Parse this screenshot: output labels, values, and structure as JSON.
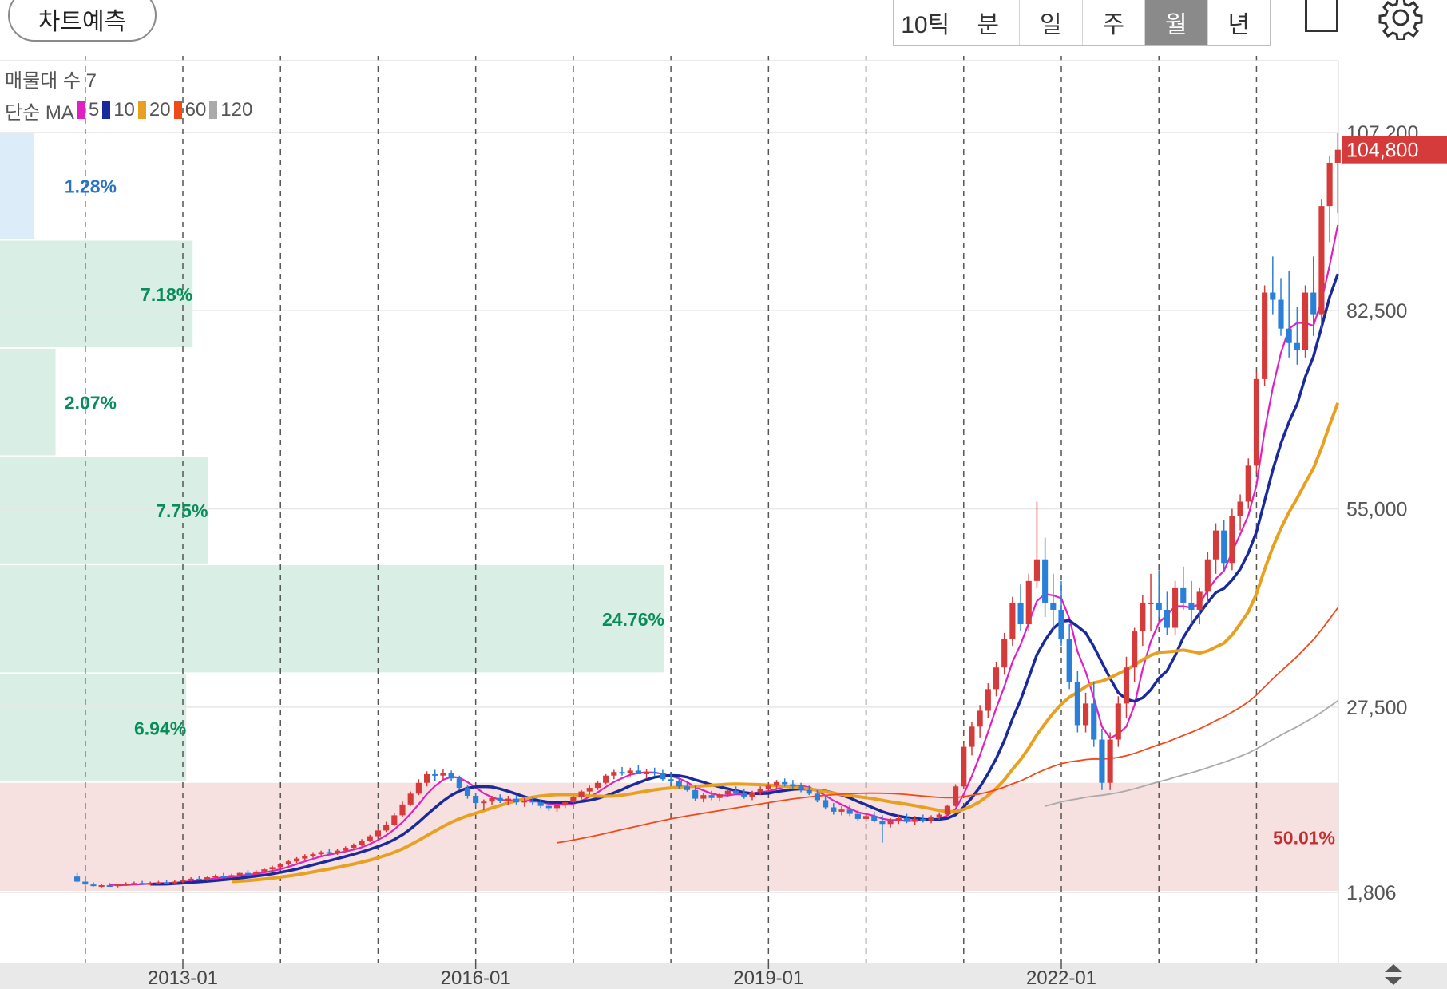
{
  "toolbar": {
    "predict_label": "차트예측",
    "periods": [
      "10틱",
      "분",
      "일",
      "주",
      "월",
      "년"
    ],
    "active_period": "월"
  },
  "legend": {
    "volume_profile_label": "매물대 수 7",
    "ma_label": "단순 MA",
    "ma_items": [
      {
        "label": "5",
        "color": "#e020c0"
      },
      {
        "label": "10",
        "color": "#1a2a9a"
      },
      {
        "label": "20",
        "color": "#e8a020"
      },
      {
        "label": "60",
        "color": "#f04a1a"
      },
      {
        "label": "120",
        "color": "#aaaaaa"
      }
    ]
  },
  "chart_data": {
    "type": "candlestick",
    "interval": "monthly",
    "x_tick_labels": [
      "2013-01",
      "2016-01",
      "2019-01",
      "2022-01"
    ],
    "y_tick_labels": [
      "107,200",
      "82,500",
      "55,000",
      "27,500",
      "1,806"
    ],
    "y_ticks": [
      107200,
      82500,
      55000,
      27500,
      1806
    ],
    "ylim": [
      1806,
      107200
    ],
    "last_price_label": "104,800",
    "last_price": 104800,
    "colors": {
      "up": "#d63b3b",
      "down": "#2a7fd8",
      "band_low": "#f2cccc",
      "band_high": "#bfe5d3",
      "band_top": "#c4dff4"
    },
    "volume_profile": [
      {
        "label": "1.28%",
        "percent": 1.28,
        "from": 92200,
        "to": 107200,
        "color": "#2a72c4"
      },
      {
        "label": "7.18%",
        "percent": 7.18,
        "from": 77200,
        "to": 92200,
        "color": "#0a8c5a"
      },
      {
        "label": "2.07%",
        "percent": 2.07,
        "from": 62200,
        "to": 77200,
        "color": "#0a8c5a"
      },
      {
        "label": "7.75%",
        "percent": 7.75,
        "from": 47200,
        "to": 62200,
        "color": "#0a8c5a"
      },
      {
        "label": "24.76%",
        "percent": 24.76,
        "from": 32100,
        "to": 47200,
        "color": "#0a8c5a"
      },
      {
        "label": "6.94%",
        "percent": 6.94,
        "from": 17000,
        "to": 32100,
        "color": "#0a8c5a"
      },
      {
        "label": "50.01%",
        "percent": 50.01,
        "from": 1806,
        "to": 17000,
        "color": "#c03030"
      }
    ],
    "ohlc": [
      [
        "2011-12",
        4000,
        4500,
        3200,
        3300
      ],
      [
        "2012-01",
        3300,
        3500,
        2700,
        2900
      ],
      [
        "2012-02",
        2900,
        3200,
        2600,
        2700
      ],
      [
        "2012-03",
        2700,
        3000,
        2500,
        2800
      ],
      [
        "2012-04",
        2800,
        3100,
        2600,
        2700
      ],
      [
        "2012-05",
        2700,
        3000,
        2500,
        2900
      ],
      [
        "2012-06",
        2900,
        3200,
        2700,
        3000
      ],
      [
        "2012-07",
        3000,
        3300,
        2800,
        3100
      ],
      [
        "2012-08",
        3100,
        3400,
        2900,
        3000
      ],
      [
        "2012-09",
        3000,
        3300,
        2800,
        3100
      ],
      [
        "2012-10",
        3100,
        3400,
        2900,
        3200
      ],
      [
        "2012-11",
        3200,
        3500,
        3000,
        3100
      ],
      [
        "2012-12",
        3100,
        3500,
        2900,
        3300
      ],
      [
        "2013-01",
        3300,
        3700,
        3100,
        3500
      ],
      [
        "2013-02",
        3500,
        3900,
        3300,
        3700
      ],
      [
        "2013-03",
        3700,
        4100,
        3500,
        3600
      ],
      [
        "2013-04",
        3600,
        4000,
        3400,
        3900
      ],
      [
        "2013-05",
        3900,
        4300,
        3700,
        4100
      ],
      [
        "2013-06",
        4100,
        4500,
        3900,
        4000
      ],
      [
        "2013-07",
        4000,
        4400,
        3800,
        4200
      ],
      [
        "2013-08",
        4200,
        4700,
        4000,
        4500
      ],
      [
        "2013-09",
        4500,
        4900,
        4300,
        4400
      ],
      [
        "2013-10",
        4400,
        4900,
        4200,
        4700
      ],
      [
        "2013-11",
        4700,
        5200,
        4500,
        5000
      ],
      [
        "2013-12",
        5000,
        5500,
        4800,
        5300
      ],
      [
        "2014-01",
        5300,
        5900,
        5100,
        5700
      ],
      [
        "2014-02",
        5700,
        6300,
        5500,
        6100
      ],
      [
        "2014-03",
        6100,
        6700,
        5900,
        6500
      ],
      [
        "2014-04",
        6500,
        7100,
        6300,
        6900
      ],
      [
        "2014-05",
        6900,
        7400,
        6600,
        7100
      ],
      [
        "2014-06",
        7100,
        7600,
        6800,
        7400
      ],
      [
        "2014-07",
        7400,
        7900,
        7100,
        7300
      ],
      [
        "2014-08",
        7300,
        7800,
        7000,
        7600
      ],
      [
        "2014-09",
        7600,
        8200,
        7400,
        8000
      ],
      [
        "2014-10",
        8000,
        8600,
        7800,
        8400
      ],
      [
        "2014-11",
        8400,
        9200,
        8200,
        9000
      ],
      [
        "2014-12",
        9000,
        9800,
        8800,
        9600
      ],
      [
        "2015-01",
        9600,
        10600,
        9400,
        10400
      ],
      [
        "2015-02",
        10400,
        11600,
        10200,
        11200
      ],
      [
        "2015-03",
        11200,
        12800,
        11000,
        12500
      ],
      [
        "2015-04",
        12500,
        14400,
        12300,
        14000
      ],
      [
        "2015-05",
        14000,
        15800,
        13800,
        15500
      ],
      [
        "2015-06",
        15500,
        17500,
        15300,
        17000
      ],
      [
        "2015-07",
        17000,
        18600,
        16500,
        18200
      ],
      [
        "2015-08",
        18200,
        18800,
        17300,
        18000
      ],
      [
        "2015-09",
        18000,
        18900,
        17400,
        18400
      ],
      [
        "2015-10",
        18400,
        18700,
        17300,
        17600
      ],
      [
        "2015-11",
        17600,
        18000,
        16000,
        16300
      ],
      [
        "2015-12",
        16300,
        16700,
        14800,
        15200
      ],
      [
        "2016-01",
        15200,
        15600,
        13800,
        14200
      ],
      [
        "2016-02",
        14200,
        14700,
        13200,
        14400
      ],
      [
        "2016-03",
        14400,
        15200,
        13900,
        14900
      ],
      [
        "2016-04",
        14900,
        15400,
        14200,
        14500
      ],
      [
        "2016-05",
        14500,
        15200,
        13900,
        14800
      ],
      [
        "2016-06",
        14800,
        15300,
        14000,
        14300
      ],
      [
        "2016-07",
        14300,
        14900,
        13700,
        14500
      ],
      [
        "2016-08",
        14500,
        15100,
        13900,
        14300
      ],
      [
        "2016-09",
        14300,
        14700,
        13500,
        13800
      ],
      [
        "2016-10",
        13800,
        14300,
        13100,
        13500
      ],
      [
        "2016-11",
        13500,
        14200,
        13000,
        13900
      ],
      [
        "2016-12",
        13900,
        14600,
        13500,
        14300
      ],
      [
        "2017-01",
        14300,
        15200,
        14000,
        15000
      ],
      [
        "2017-02",
        15000,
        16000,
        14700,
        15800
      ],
      [
        "2017-03",
        15800,
        16600,
        15400,
        16300
      ],
      [
        "2017-04",
        16300,
        17300,
        16000,
        17000
      ],
      [
        "2017-05",
        17000,
        18200,
        16800,
        18000
      ],
      [
        "2017-06",
        18000,
        18800,
        17500,
        18500
      ],
      [
        "2017-07",
        18500,
        19200,
        18000,
        18400
      ],
      [
        "2017-08",
        18400,
        19100,
        17900,
        18700
      ],
      [
        "2017-09",
        18700,
        19500,
        18200,
        18200
      ],
      [
        "2017-10",
        18200,
        18900,
        17600,
        18500
      ],
      [
        "2017-11",
        18500,
        19100,
        17900,
        18300
      ],
      [
        "2017-12",
        18300,
        18800,
        17200,
        17500
      ],
      [
        "2018-01",
        17500,
        18200,
        16800,
        17200
      ],
      [
        "2018-02",
        17200,
        17700,
        16200,
        16500
      ],
      [
        "2018-03",
        16500,
        17200,
        15800,
        16000
      ],
      [
        "2018-04",
        16000,
        16600,
        14500,
        14800
      ],
      [
        "2018-05",
        14800,
        15600,
        14300,
        15300
      ],
      [
        "2018-06",
        15300,
        15900,
        14600,
        14900
      ],
      [
        "2018-07",
        14900,
        15600,
        14400,
        15400
      ],
      [
        "2018-08",
        15400,
        16200,
        15100,
        15900
      ],
      [
        "2018-09",
        15900,
        16500,
        15400,
        15600
      ],
      [
        "2018-10",
        15600,
        16200,
        14800,
        15100
      ],
      [
        "2018-11",
        15100,
        15900,
        14600,
        15700
      ],
      [
        "2018-12",
        15700,
        16500,
        15300,
        16200
      ],
      [
        "2019-01",
        16200,
        16900,
        15900,
        16600
      ],
      [
        "2019-02",
        16600,
        17400,
        16200,
        17100
      ],
      [
        "2019-03",
        17100,
        17600,
        16500,
        16800
      ],
      [
        "2019-04",
        16800,
        17400,
        16200,
        16500
      ],
      [
        "2019-05",
        16500,
        17000,
        15700,
        16000
      ],
      [
        "2019-06",
        16000,
        16600,
        15300,
        15500
      ],
      [
        "2019-07",
        15500,
        16000,
        14300,
        14600
      ],
      [
        "2019-08",
        14600,
        15200,
        13300,
        13600
      ],
      [
        "2019-09",
        13600,
        14200,
        12600,
        13000
      ],
      [
        "2019-10",
        13000,
        13800,
        12500,
        13300
      ],
      [
        "2019-11",
        13300,
        13900,
        12400,
        12700
      ],
      [
        "2019-12",
        12700,
        13200,
        11700,
        12000
      ],
      [
        "2020-01",
        12000,
        12800,
        11600,
        12400
      ],
      [
        "2020-02",
        12400,
        13000,
        11500,
        11700
      ],
      [
        "2020-03",
        11700,
        12500,
        8700,
        11300
      ],
      [
        "2020-04",
        11300,
        12100,
        10800,
        11800
      ],
      [
        "2020-05",
        11800,
        12500,
        11300,
        12100
      ],
      [
        "2020-06",
        12100,
        12700,
        11400,
        11600
      ],
      [
        "2020-07",
        11600,
        12400,
        11200,
        12000
      ],
      [
        "2020-08",
        12000,
        12600,
        11500,
        11800
      ],
      [
        "2020-09",
        11800,
        12500,
        11400,
        12200
      ],
      [
        "2020-10",
        12200,
        12900,
        11900,
        12600
      ],
      [
        "2020-11",
        12600,
        14000,
        12400,
        13800
      ],
      [
        "2020-12",
        13800,
        16800,
        13700,
        16500
      ],
      [
        "2021-01",
        16500,
        22500,
        16200,
        22000
      ],
      [
        "2021-02",
        22000,
        25500,
        20800,
        24800
      ],
      [
        "2021-03",
        24800,
        27800,
        23300,
        27000
      ],
      [
        "2021-04",
        27000,
        30800,
        26000,
        30000
      ],
      [
        "2021-05",
        30000,
        33800,
        29000,
        33000
      ],
      [
        "2021-06",
        33000,
        37800,
        32000,
        37000
      ],
      [
        "2021-07",
        37000,
        42800,
        36000,
        42000
      ],
      [
        "2021-08",
        42000,
        44500,
        38000,
        39000
      ],
      [
        "2021-09",
        39000,
        46000,
        38000,
        45000
      ],
      [
        "2021-10",
        45000,
        56000,
        44000,
        48000
      ],
      [
        "2021-11",
        48000,
        51000,
        40000,
        42000
      ],
      [
        "2021-12",
        42000,
        46000,
        38000,
        41000
      ],
      [
        "2022-01",
        41000,
        45000,
        36000,
        37000
      ],
      [
        "2022-02",
        37000,
        39000,
        30000,
        31000
      ],
      [
        "2022-03",
        31000,
        32500,
        24000,
        25000
      ],
      [
        "2022-04",
        25000,
        29500,
        24000,
        28000
      ],
      [
        "2022-05",
        28000,
        31000,
        22000,
        23000
      ],
      [
        "2022-06",
        23000,
        24500,
        16000,
        17000
      ],
      [
        "2022-07",
        17000,
        24000,
        16000,
        23000
      ],
      [
        "2022-08",
        23000,
        29000,
        22000,
        28000
      ],
      [
        "2022-09",
        28000,
        34500,
        26000,
        33000
      ],
      [
        "2022-10",
        33000,
        38500,
        31000,
        38000
      ],
      [
        "2022-11",
        38000,
        43000,
        36000,
        42000
      ],
      [
        "2022-12",
        42000,
        46000,
        38000,
        42000
      ],
      [
        "2023-01",
        42000,
        46500,
        40000,
        41000
      ],
      [
        "2023-02",
        41000,
        43500,
        37500,
        38500
      ],
      [
        "2023-03",
        38500,
        45000,
        37500,
        44000
      ],
      [
        "2023-04",
        44000,
        47000,
        41000,
        42000
      ],
      [
        "2023-05",
        42000,
        45000,
        39000,
        41000
      ],
      [
        "2023-06",
        41000,
        44000,
        39000,
        43500
      ],
      [
        "2023-07",
        43500,
        49000,
        42000,
        48000
      ],
      [
        "2023-08",
        48000,
        53000,
        46000,
        52000
      ],
      [
        "2023-09",
        52000,
        53500,
        46500,
        47500
      ],
      [
        "2023-10",
        47500,
        55000,
        46500,
        54000
      ],
      [
        "2023-11",
        54000,
        57000,
        52000,
        56000
      ],
      [
        "2023-12",
        56000,
        62000,
        55000,
        61000
      ],
      [
        "2024-01",
        61000,
        74000,
        60000,
        73000
      ],
      [
        "2024-02",
        73000,
        86000,
        72000,
        85000
      ],
      [
        "2024-03",
        85000,
        90000,
        82000,
        84000
      ],
      [
        "2024-04",
        84000,
        87000,
        79000,
        80000
      ],
      [
        "2024-05",
        80000,
        88000,
        76000,
        78000
      ],
      [
        "2024-06",
        78000,
        83000,
        75000,
        77000
      ],
      [
        "2024-07",
        77000,
        86000,
        76000,
        85000
      ],
      [
        "2024-08",
        85000,
        90000,
        79000,
        82000
      ],
      [
        "2024-09",
        82000,
        98000,
        80000,
        97000
      ],
      [
        "2024-10",
        97000,
        104000,
        92000,
        103000
      ],
      [
        "2024-11",
        103000,
        107200,
        96000,
        104800
      ]
    ]
  }
}
